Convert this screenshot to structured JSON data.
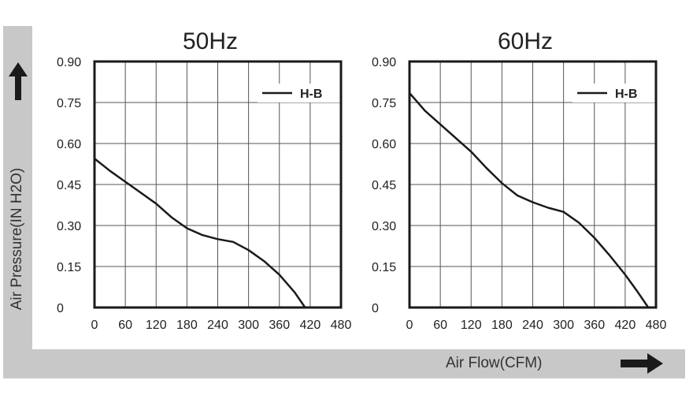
{
  "y_axis_title": "Air Pressure(IN H2O)",
  "x_axis_title": "Air Flow(CFM)",
  "colors": {
    "frame": "#c8c8c8",
    "curve": "#1a1a1a",
    "grid": "#555555",
    "arrow": "#1a1a1a"
  },
  "icons": {
    "y_arrow": "up-arrow-icon",
    "x_arrow": "right-arrow-icon"
  },
  "chart_data": [
    {
      "type": "line",
      "title": "50Hz",
      "xlabel": "Air Flow(CFM)",
      "ylabel": "Air Pressure(IN H2O)",
      "xlim": [
        0,
        480
      ],
      "ylim": [
        0,
        0.9
      ],
      "x_ticks": [
        "0",
        "60",
        "120",
        "180",
        "240",
        "300",
        "360",
        "420",
        "480"
      ],
      "y_ticks": [
        "0",
        "0.15",
        "0.30",
        "0.45",
        "0.60",
        "0.75",
        "0.90"
      ],
      "grid": true,
      "legend_position": "top-right",
      "series": [
        {
          "name": "H-B",
          "x": [
            0,
            30,
            60,
            90,
            120,
            150,
            180,
            210,
            240,
            270,
            300,
            330,
            360,
            390,
            410
          ],
          "y": [
            0.545,
            0.5,
            0.46,
            0.42,
            0.38,
            0.33,
            0.29,
            0.265,
            0.25,
            0.24,
            0.21,
            0.17,
            0.12,
            0.055,
            0.0
          ]
        }
      ]
    },
    {
      "type": "line",
      "title": "60Hz",
      "xlabel": "Air Flow(CFM)",
      "ylabel": "Air Pressure(IN H2O)",
      "xlim": [
        0,
        480
      ],
      "ylim": [
        0,
        0.9
      ],
      "x_ticks": [
        "0",
        "60",
        "120",
        "180",
        "240",
        "300",
        "360",
        "420",
        "480"
      ],
      "y_ticks": [
        "0",
        "0.15",
        "0.30",
        "0.45",
        "0.60",
        "0.75",
        "0.90"
      ],
      "grid": true,
      "legend_position": "top-right",
      "series": [
        {
          "name": "H-B",
          "x": [
            0,
            30,
            60,
            90,
            120,
            150,
            180,
            210,
            240,
            270,
            300,
            330,
            360,
            390,
            420,
            445,
            465
          ],
          "y": [
            0.785,
            0.72,
            0.67,
            0.62,
            0.57,
            0.51,
            0.455,
            0.41,
            0.385,
            0.365,
            0.35,
            0.31,
            0.255,
            0.19,
            0.12,
            0.055,
            0.0
          ]
        }
      ]
    }
  ]
}
